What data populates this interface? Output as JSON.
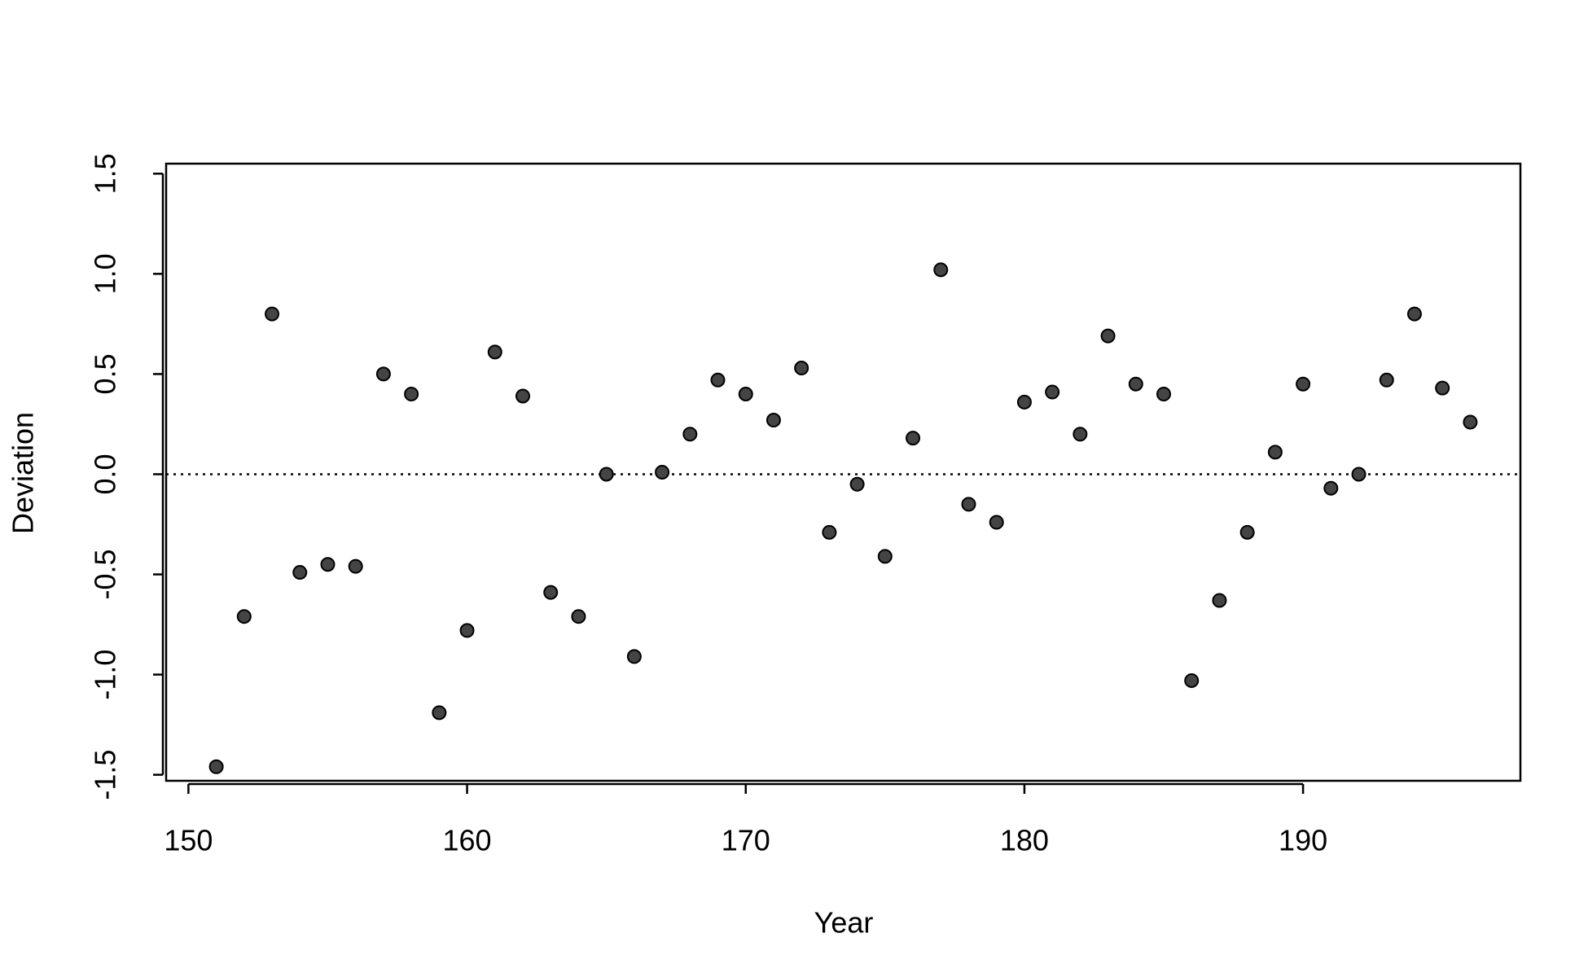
{
  "chart_data": {
    "type": "scatter",
    "x_label": "Year",
    "y_label": "Deviation",
    "x": [
      151,
      152,
      153,
      154,
      155,
      156,
      157,
      158,
      159,
      160,
      161,
      162,
      163,
      164,
      165,
      166,
      167,
      168,
      169,
      170,
      171,
      172,
      173,
      174,
      175,
      176,
      177,
      178,
      179,
      180,
      181,
      182,
      183,
      184,
      185,
      186,
      187,
      188,
      189,
      190,
      191,
      192,
      193,
      194,
      195,
      196
    ],
    "values": [
      -1.46,
      -0.71,
      0.8,
      -0.49,
      -0.45,
      -0.46,
      0.5,
      0.4,
      -1.19,
      -0.78,
      0.61,
      0.39,
      -0.59,
      -0.71,
      0.0,
      -0.91,
      0.01,
      0.2,
      0.47,
      0.4,
      0.27,
      0.53,
      -0.29,
      -0.05,
      -0.41,
      0.18,
      1.02,
      -0.15,
      -0.24,
      0.36,
      0.41,
      0.2,
      0.69,
      0.45,
      0.4,
      -1.03,
      -0.63,
      -0.29,
      0.11,
      0.45,
      -0.07,
      0.0,
      0.47,
      0.8,
      0.43,
      0.26
    ],
    "color": "#444444",
    "reference_line": 0,
    "xlim": [
      149.2,
      197.8
    ],
    "xticks": [
      150,
      160,
      170,
      180,
      190
    ],
    "ylim": [
      -1.53,
      1.55
    ],
    "yticks": [
      -1.5,
      {
        "value": -1.0,
        "label": "-1.0"
      },
      -0.5,
      {
        "value": 0.0,
        "label": "0.0"
      },
      0.5,
      {
        "value": 1.0,
        "label": "1.0"
      },
      1.5
    ]
  }
}
